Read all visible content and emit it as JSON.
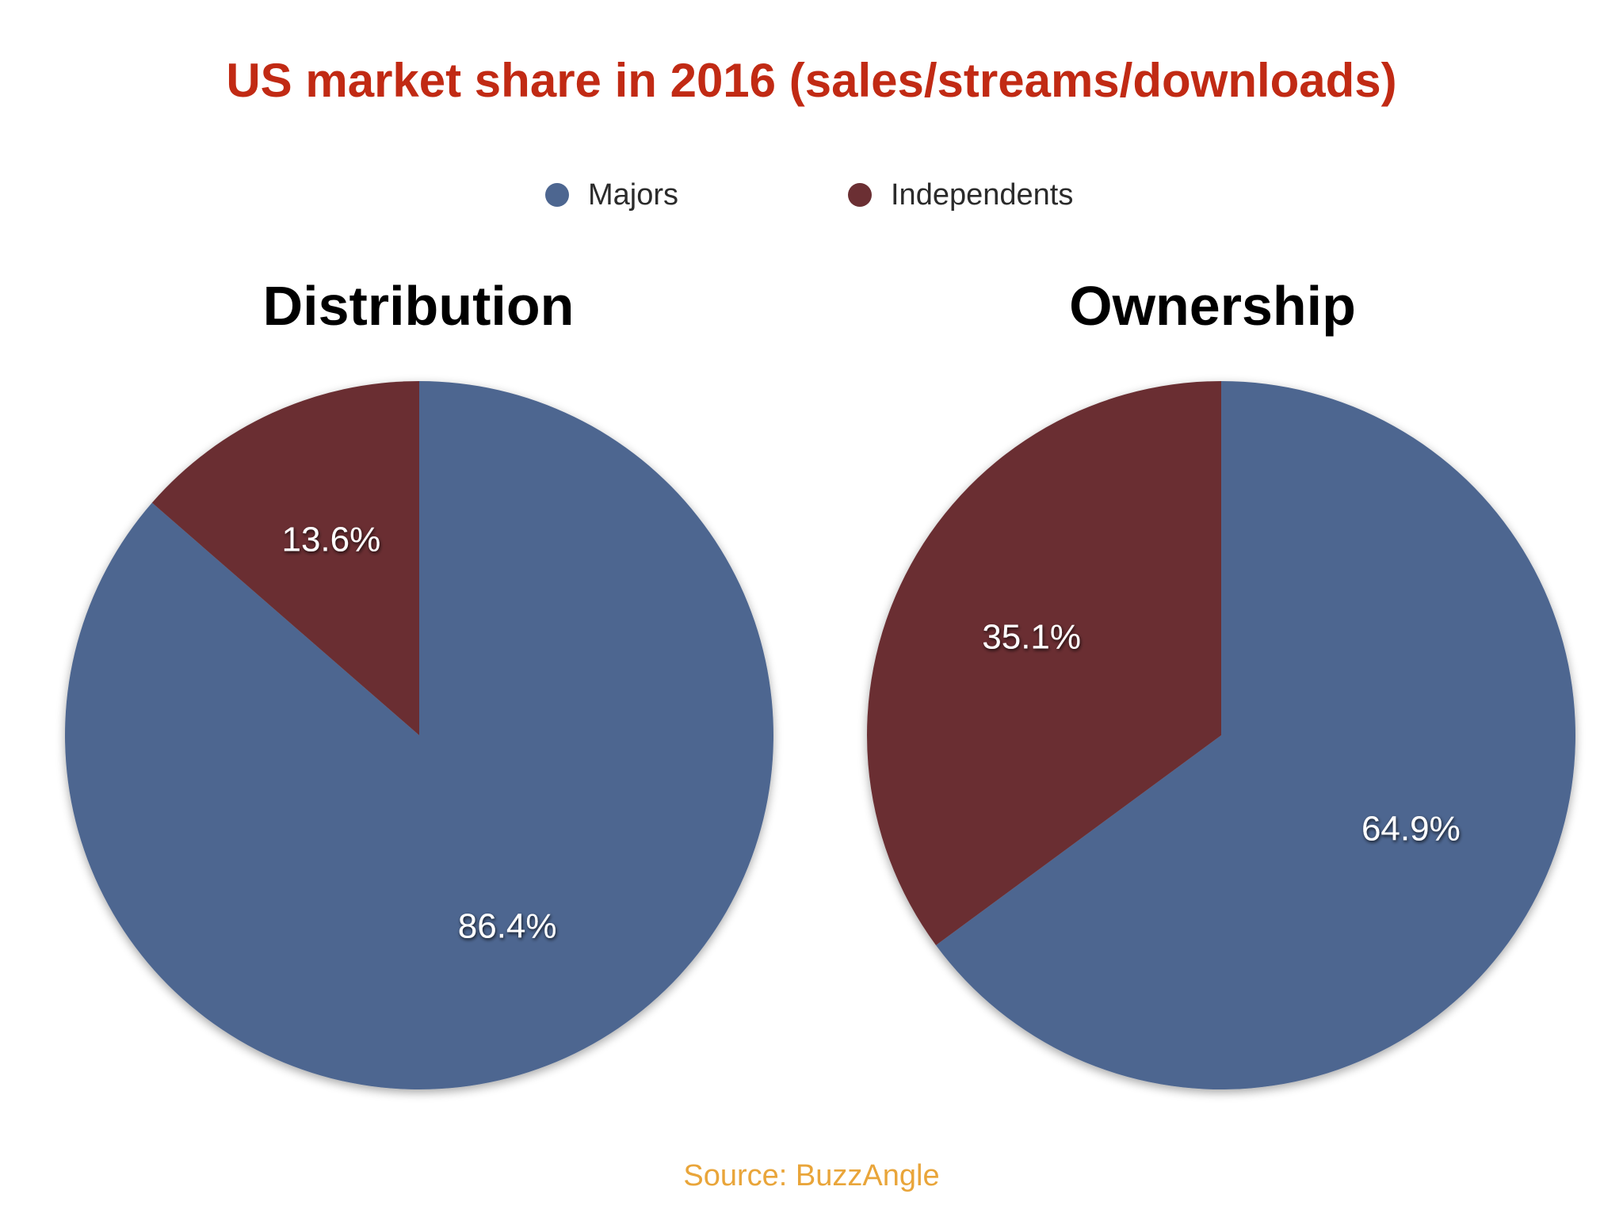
{
  "title": "US market share in 2016 (sales/streams/downloads)",
  "legend": [
    {
      "label": "Majors",
      "color": "#4d6690"
    },
    {
      "label": "Independents",
      "color": "#6b2f33"
    }
  ],
  "source": "Source: BuzzAngle",
  "chart_data": [
    {
      "type": "pie",
      "title": "Distribution",
      "categories": [
        "Majors",
        "Independents"
      ],
      "values": [
        86.4,
        13.6
      ],
      "labels": [
        "86.4%",
        "13.6%"
      ],
      "colors": [
        "#4d6690",
        "#6b2f33"
      ]
    },
    {
      "type": "pie",
      "title": "Ownership",
      "categories": [
        "Majors",
        "Independents"
      ],
      "values": [
        64.9,
        35.1
      ],
      "labels": [
        "64.9%",
        "35.1%"
      ],
      "colors": [
        "#4d6690",
        "#6b2f33"
      ]
    }
  ]
}
